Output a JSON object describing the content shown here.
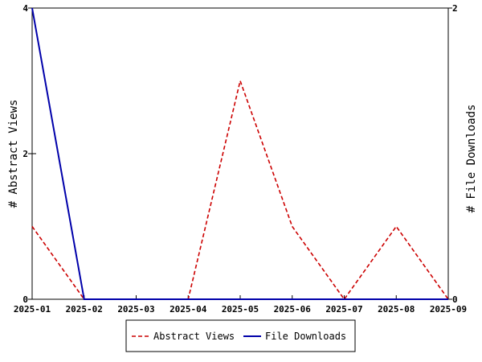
{
  "chart_data": {
    "type": "line",
    "x": [
      "2025-01",
      "2025-02",
      "2025-03",
      "2025-04",
      "2025-05",
      "2025-06",
      "2025-07",
      "2025-08",
      "2025-09"
    ],
    "y_left": {
      "label": "# Abstract Views",
      "ylim": [
        0,
        4
      ],
      "ticks": [
        "0",
        "2",
        "4"
      ]
    },
    "y_right": {
      "label": "# File Downloads",
      "ylim": [
        0,
        2
      ],
      "ticks": [
        "0",
        "2"
      ]
    },
    "series": [
      {
        "name": "Abstract Views",
        "axis": "left",
        "values": [
          1,
          0,
          0,
          0,
          3,
          1,
          0,
          1,
          0
        ],
        "color": "#cc0000",
        "style": "dashed"
      },
      {
        "name": "File Downloads",
        "axis": "right",
        "values": [
          2,
          0,
          0,
          0,
          0,
          0,
          0,
          0,
          0
        ],
        "color": "#0000aa",
        "style": "solid"
      }
    ],
    "grid": false,
    "legend_position": "bottom-center"
  }
}
